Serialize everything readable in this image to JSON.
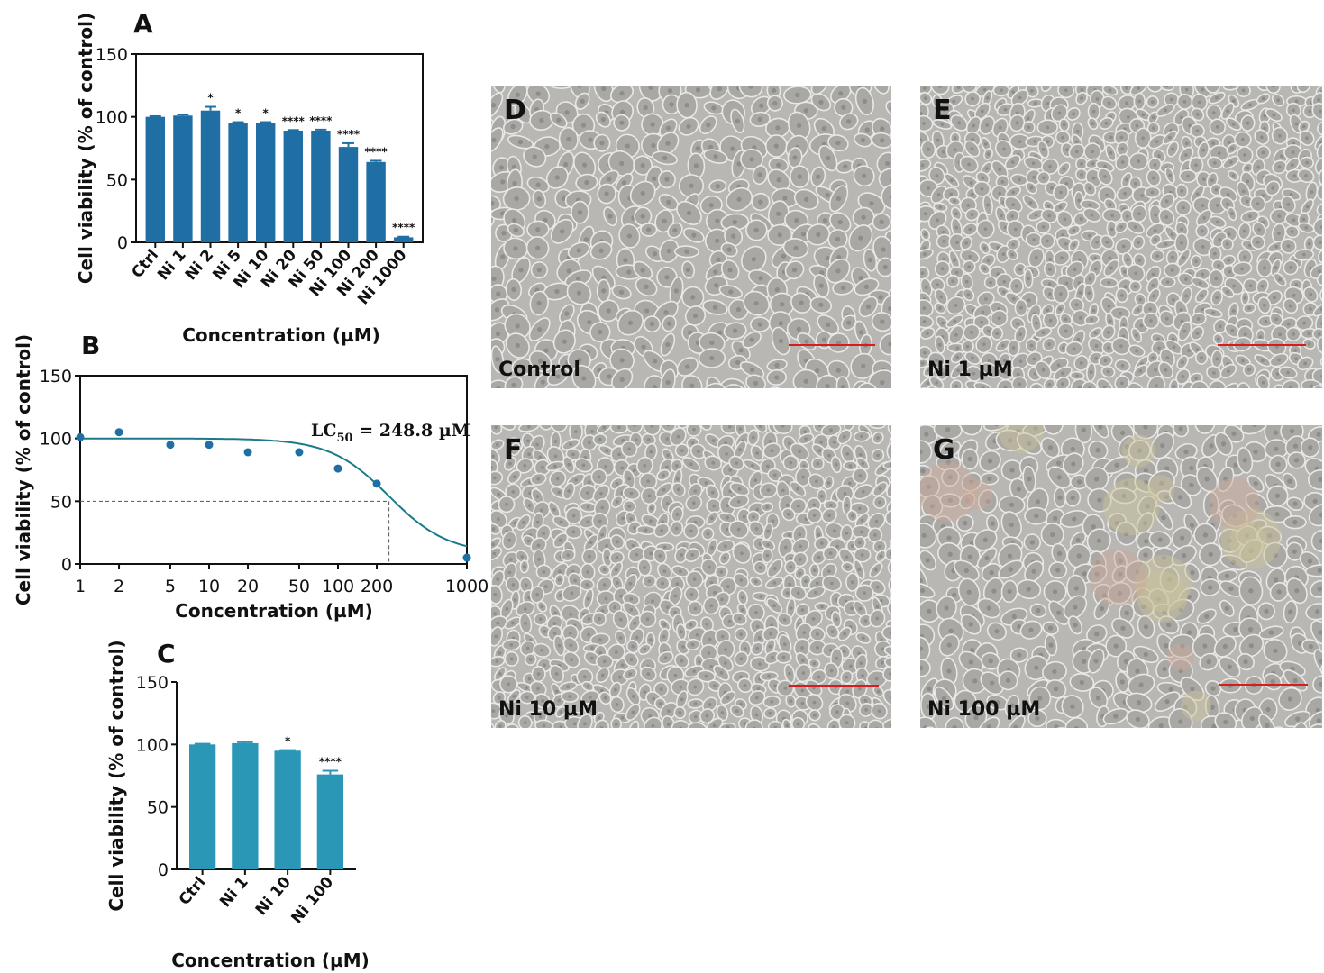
{
  "panels": {
    "A": {
      "label": "A"
    },
    "B": {
      "label": "B"
    },
    "C": {
      "label": "C"
    },
    "D": {
      "label": "D",
      "caption": "Control"
    },
    "E": {
      "label": "E",
      "caption": "Ni 1 µM"
    },
    "F": {
      "label": "F",
      "caption": "Ni 10 µM"
    },
    "G": {
      "label": "G",
      "caption": "Ni 100 µM"
    }
  },
  "chart_data": [
    {
      "panel": "A",
      "type": "bar",
      "color": "#1f6fa5",
      "ylabel": "Cell viability (% of control)",
      "xlabel": "Concentration (µM)",
      "ylim": [
        0,
        150
      ],
      "yticks": [
        "0",
        "50",
        "100",
        "150"
      ],
      "categories": [
        "Ctrl",
        "Ni 1",
        "Ni 2",
        "Ni 5",
        "Ni 10",
        "Ni 20",
        "Ni 50",
        "Ni 100",
        "Ni 200",
        "Ni 1000"
      ],
      "values": [
        100,
        101,
        105,
        95,
        95,
        89,
        89,
        76,
        64,
        4
      ],
      "errors": [
        0.5,
        0.8,
        3,
        0.8,
        0.8,
        0.5,
        0.8,
        3,
        1,
        0.5
      ],
      "significance": [
        "",
        "",
        "*",
        "*",
        "*",
        "****",
        "****",
        "****",
        "****",
        "****"
      ]
    },
    {
      "panel": "B",
      "type": "scatter",
      "color": "#1f6fa5",
      "curve_color": "#1a7a8a",
      "xlabel": "Concentration (µM)",
      "ylabel": "Cell viability (% of control)",
      "xscale": "log",
      "xlim": [
        1,
        1000
      ],
      "ylim": [
        0,
        150
      ],
      "xticks": [
        "1",
        "2",
        "5",
        "10",
        "20",
        "50",
        "100",
        "200",
        "1000"
      ],
      "yticks": [
        "0",
        "50",
        "100",
        "150"
      ],
      "x": [
        1,
        2,
        5,
        10,
        20,
        50,
        100,
        200,
        1000
      ],
      "y": [
        101,
        105,
        95,
        95,
        89,
        89,
        76,
        64,
        5
      ],
      "annotation": {
        "prefix": "LC",
        "sub": "50",
        "suffix": " = 248.8 µM"
      },
      "lc50": 248.8,
      "guide_y": 50,
      "fit": "sigmoidal dose-response"
    },
    {
      "panel": "C",
      "type": "bar",
      "color": "#2b97b7",
      "ylabel": "Cell viability (% of control)",
      "xlabel": "Concentration (µM)",
      "ylim": [
        0,
        150
      ],
      "yticks": [
        "0",
        "50",
        "100",
        "150"
      ],
      "categories": [
        "Ctrl",
        "Ni 1",
        "Ni 10",
        "Ni 100"
      ],
      "values": [
        100,
        101,
        95,
        76
      ],
      "errors": [
        0.5,
        0.8,
        0.5,
        3
      ],
      "significance": [
        "",
        "",
        "*",
        "****"
      ]
    }
  ]
}
